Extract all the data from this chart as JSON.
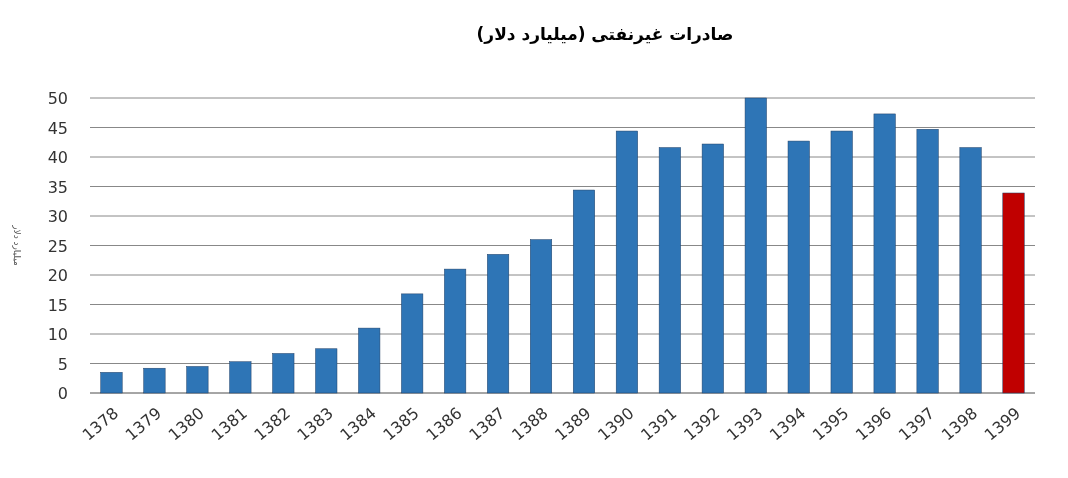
{
  "chart_data": {
    "type": "bar",
    "title": "صادرات غیرنفتی (میلیارد دلار)",
    "ylabel": "میلیارد دلار",
    "categories": [
      "1378",
      "1379",
      "1380",
      "1381",
      "1382",
      "1383",
      "1384",
      "1385",
      "1386",
      "1387",
      "1388",
      "1389",
      "1390",
      "1391",
      "1392",
      "1393",
      "1394",
      "1395",
      "1396",
      "1397",
      "1398",
      "1399"
    ],
    "values": [
      3.5,
      4.2,
      4.5,
      5.3,
      6.7,
      7.5,
      11,
      16.8,
      21,
      23.5,
      26,
      34.4,
      44.4,
      41.6,
      42.2,
      50,
      42.7,
      44.4,
      47.3,
      44.7,
      41.6,
      33.9
    ],
    "colors": [
      "#2e75b6",
      "#2e75b6",
      "#2e75b6",
      "#2e75b6",
      "#2e75b6",
      "#2e75b6",
      "#2e75b6",
      "#2e75b6",
      "#2e75b6",
      "#2e75b6",
      "#2e75b6",
      "#2e75b6",
      "#2e75b6",
      "#2e75b6",
      "#2e75b6",
      "#2e75b6",
      "#2e75b6",
      "#2e75b6",
      "#2e75b6",
      "#2e75b6",
      "#2e75b6",
      "#c00000"
    ],
    "ylim": [
      0,
      50
    ],
    "yticks": [
      0,
      5,
      10,
      15,
      20,
      25,
      30,
      35,
      40,
      45,
      50
    ],
    "grid": "y"
  }
}
